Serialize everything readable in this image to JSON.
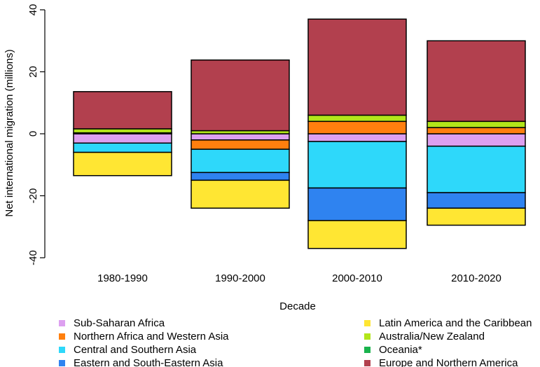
{
  "chart_data": {
    "type": "bar",
    "stacked": "diverging",
    "title": "",
    "xlabel": "Decade",
    "ylabel": "Net international migration (millions)",
    "ylim": [
      -40,
      40
    ],
    "yticks": [
      -40,
      -20,
      0,
      20,
      40
    ],
    "grid": false,
    "legend_position": "bottom",
    "categories": [
      "1980-1990",
      "1990-2000",
      "2000-2010",
      "2010-2020"
    ],
    "series": [
      {
        "name": "Sub-Saharan Africa",
        "color": "#dda0f0",
        "values": [
          -3.0,
          -2.0,
          -2.5,
          -4.0
        ]
      },
      {
        "name": "Northern Africa and Western Asia",
        "color": "#ff7f0e",
        "values": [
          0.3,
          -3.0,
          4.0,
          2.0
        ]
      },
      {
        "name": "Central and Southern Asia",
        "color": "#2ed8fa",
        "values": [
          -3.0,
          -7.5,
          -15.0,
          -15.0
        ]
      },
      {
        "name": "Eastern and South-Eastern Asia",
        "color": "#2f83f0",
        "values": [
          0,
          -2.5,
          -10.5,
          -5.0
        ]
      },
      {
        "name": "Latin America and the Caribbean",
        "color": "#ffe633",
        "values": [
          -7.5,
          -9.0,
          -9.0,
          -5.5
        ]
      },
      {
        "name": "Australia/New Zealand",
        "color": "#b2e61a",
        "values": [
          1.3,
          1.0,
          2.0,
          2.0
        ]
      },
      {
        "name": "Oceania*",
        "color": "#1ab34d",
        "values": [
          0,
          0,
          0,
          0
        ]
      },
      {
        "name": "Europe and Northern America",
        "color": "#b2404e",
        "values": [
          12.0,
          22.8,
          31.0,
          26.0
        ]
      }
    ]
  }
}
